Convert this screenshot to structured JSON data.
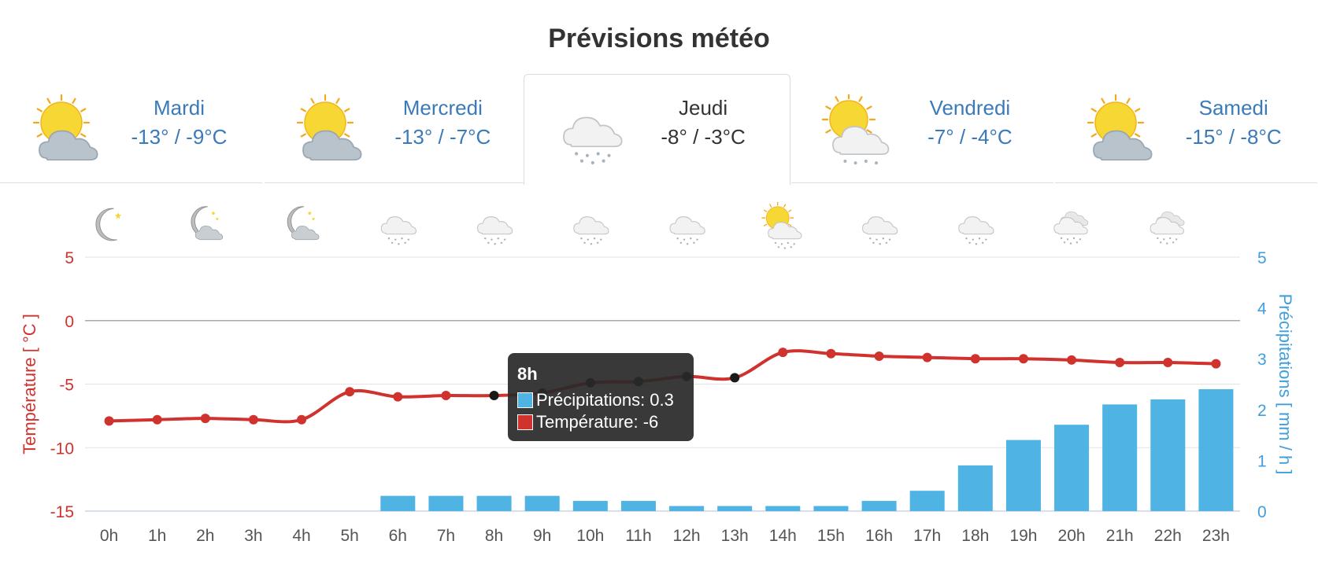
{
  "title": "Prévisions météo",
  "days": [
    {
      "day": "Mardi",
      "temp": "-13° / -9°C",
      "icon": "sun-cloud-icon",
      "active": false
    },
    {
      "day": "Mercredi",
      "temp": "-13° / -7°C",
      "icon": "sun-cloud-icon",
      "active": false
    },
    {
      "day": "Jeudi",
      "temp": "-8° / -3°C",
      "icon": "snow-cloud-icon",
      "active": true
    },
    {
      "day": "Vendredi",
      "temp": "-7° / -4°C",
      "icon": "sun-snow-cloud-icon",
      "active": false
    },
    {
      "day": "Samedi",
      "temp": "-15° / -8°C",
      "icon": "sun-cloud-icon",
      "active": false
    }
  ],
  "hour_icons": [
    "moon-icon",
    "moon-cloud-icon",
    "moon-cloud-icon",
    "snow-cloud-icon",
    "snow-cloud-icon",
    "snow-cloud-icon",
    "snow-cloud-icon",
    "sun-snow-cloud-icon",
    "snow-cloud-icon",
    "snow-cloud-icon",
    "snow-clouds-icon",
    "snow-clouds-icon"
  ],
  "chart_data": {
    "type": "bar",
    "categories": [
      "0h",
      "1h",
      "2h",
      "3h",
      "4h",
      "5h",
      "6h",
      "7h",
      "8h",
      "9h",
      "10h",
      "11h",
      "12h",
      "13h",
      "14h",
      "15h",
      "16h",
      "17h",
      "18h",
      "19h",
      "20h",
      "21h",
      "22h",
      "23h"
    ],
    "series": [
      {
        "name": "Précipitations",
        "type": "bar",
        "axis": "right",
        "color": "#4fb3e3",
        "values": [
          0,
          0,
          0,
          0,
          0,
          0,
          0.3,
          0.3,
          0.3,
          0.3,
          0.2,
          0.2,
          0.1,
          0.1,
          0.1,
          0.1,
          0.2,
          0.4,
          0.9,
          1.4,
          1.7,
          2.1,
          2.2,
          2.4
        ]
      },
      {
        "name": "Température",
        "type": "line",
        "axis": "left",
        "color": "#d0322d",
        "values": [
          -7.9,
          -7.8,
          -7.7,
          -7.8,
          -7.8,
          -5.6,
          -6.0,
          -5.9,
          -5.9,
          -5.7,
          -4.9,
          -4.8,
          -4.4,
          -4.5,
          -2.5,
          -2.6,
          -2.8,
          -2.9,
          -3.0,
          -3.0,
          -3.1,
          -3.3,
          -3.3,
          -3.4
        ]
      }
    ],
    "ylabel_left": "Température [ °C ]",
    "ylabel_right": "Précipitations [ mm / h ]",
    "ylim_left": [
      -15,
      5
    ],
    "ylim_right": [
      0,
      5
    ],
    "yticks_left": [
      "5",
      "0",
      "-5",
      "-10",
      "-15"
    ],
    "yticks_right": [
      "5",
      "4",
      "3",
      "2",
      "1",
      "0"
    ],
    "grid": true,
    "legend": "none",
    "tooltip": {
      "title": "8h",
      "rows": [
        {
          "label": "Précipitations: 0.3",
          "color": "#4fb3e3"
        },
        {
          "label": "Température: -6",
          "color": "#d0322d"
        }
      ]
    }
  }
}
